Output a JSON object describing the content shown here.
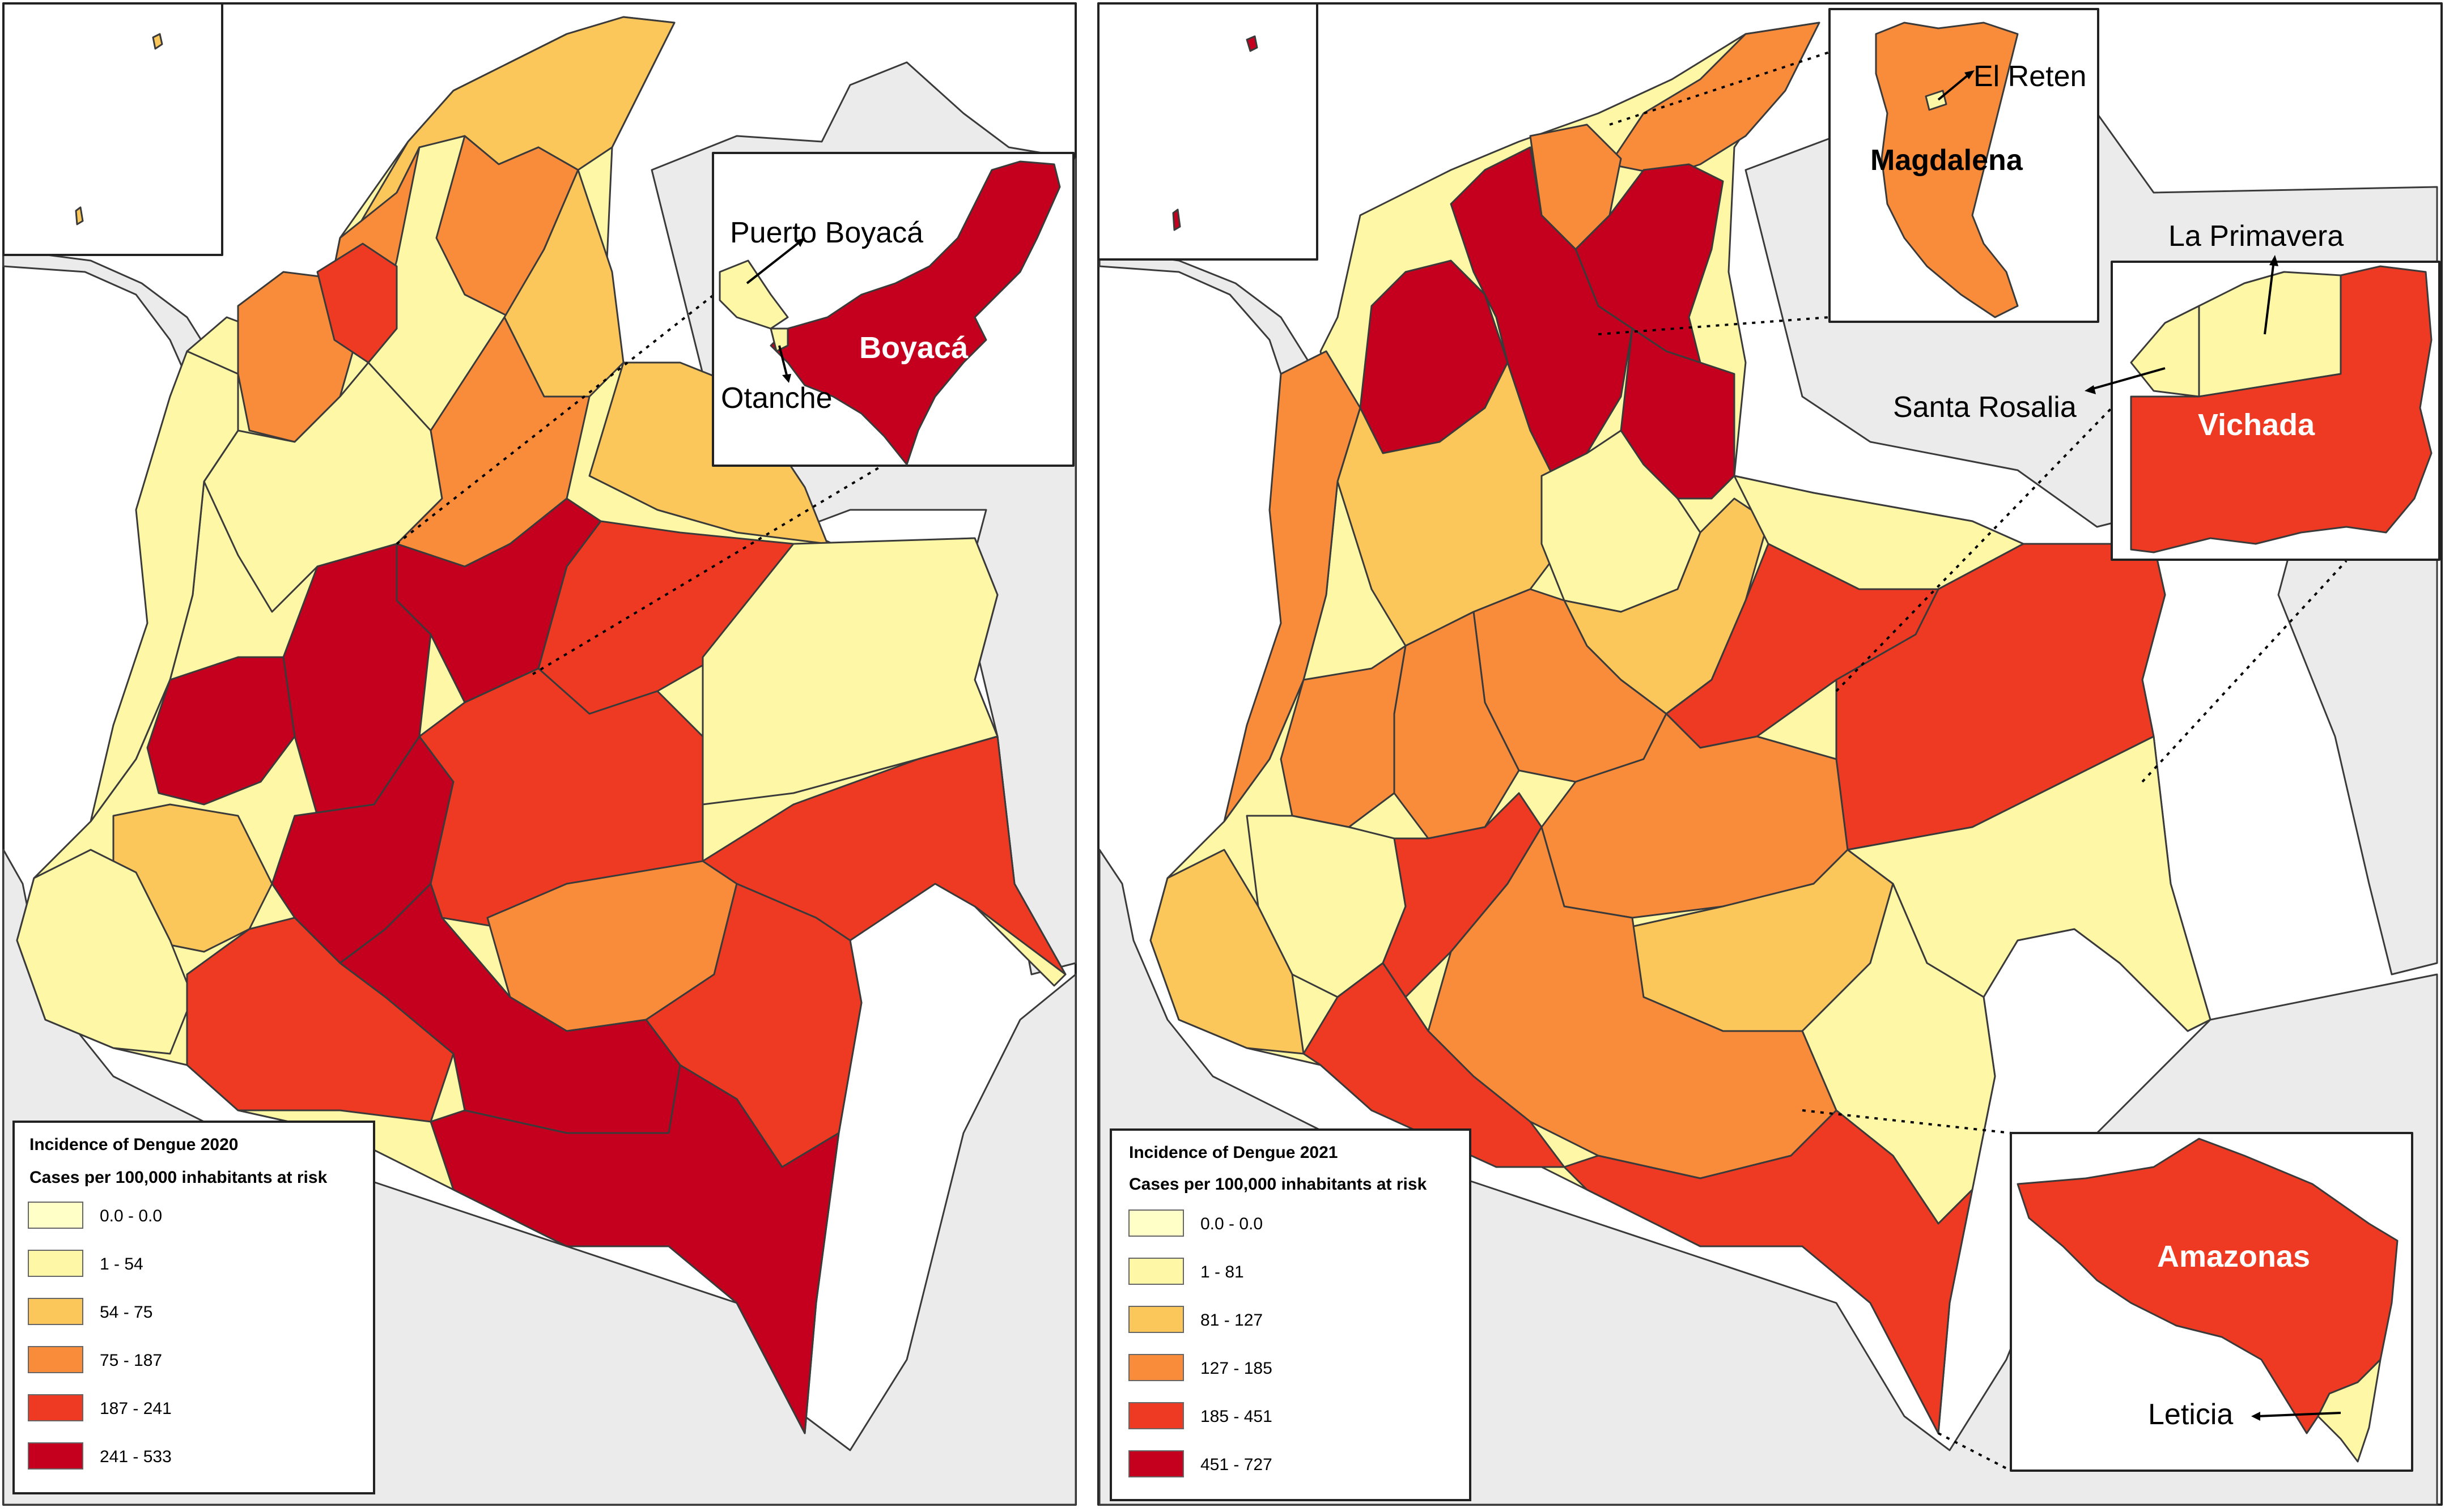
{
  "colors": {
    "c0": "#ffffc8",
    "c1": "#fdf7a6",
    "c2": "#fcc75a",
    "c3": "#f98c3a",
    "c4": "#ee3a22",
    "c5": "#c4001e",
    "neighbor": "#ebebeb",
    "sea": "#ffffff",
    "border": "#3a3a3a"
  },
  "map2020": {
    "legend": {
      "title": "Incidence of Dengue 2020",
      "subtitle": "Cases per 100,000 inhabitants at risk",
      "classes": [
        {
          "label": "0.0 - 0.0",
          "color": "#ffffc8"
        },
        {
          "label": "1 - 54",
          "color": "#fdf7a6"
        },
        {
          "label": "54 - 75",
          "color": "#fcc75a"
        },
        {
          "label": "75 - 187",
          "color": "#f98c3a"
        },
        {
          "label": "187 - 241",
          "color": "#ee3a22"
        },
        {
          "label": "241 - 533",
          "color": "#c4001e"
        }
      ]
    },
    "inset": {
      "department": "Boyacá",
      "municipalities": [
        "Puerto Boyacá",
        "Otanche"
      ]
    }
  },
  "map2021": {
    "legend": {
      "title": "Incidence of Dengue 2021",
      "subtitle": "Cases per 100,000 inhabitants at risk",
      "classes": [
        {
          "label": "0.0 - 0.0",
          "color": "#ffffc8"
        },
        {
          "label": "1 - 81",
          "color": "#fdf7a6"
        },
        {
          "label": "81 - 127",
          "color": "#fcc75a"
        },
        {
          "label": "127 - 185",
          "color": "#f98c3a"
        },
        {
          "label": "185 - 451",
          "color": "#ee3a22"
        },
        {
          "label": "451 - 727",
          "color": "#c4001e"
        }
      ]
    },
    "insets": [
      {
        "department": "Magdalena",
        "municipalities": [
          "El Reten"
        ]
      },
      {
        "department": "Vichada",
        "municipalities": [
          "La Primavera",
          "Santa Rosalia"
        ]
      },
      {
        "department": "Amazonas",
        "municipalities": [
          "Leticia"
        ]
      }
    ]
  }
}
